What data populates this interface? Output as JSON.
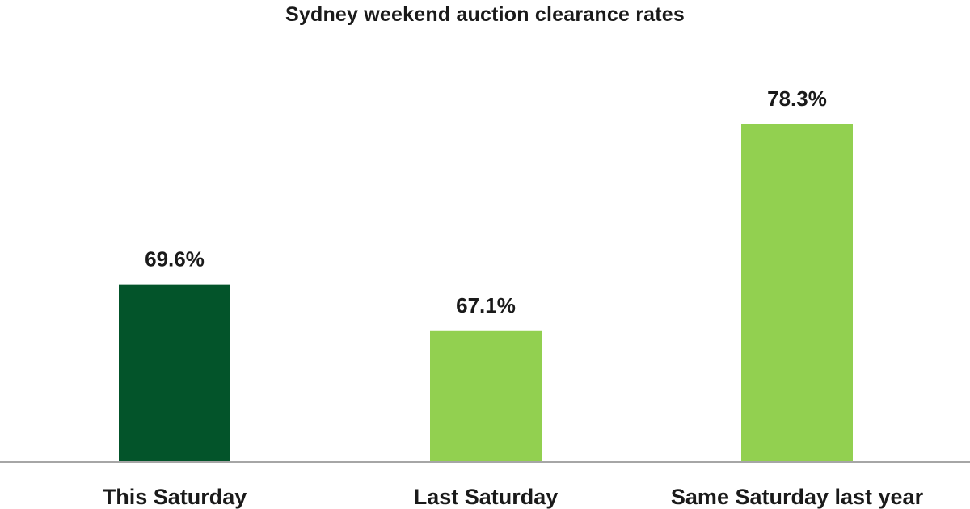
{
  "colors": {
    "accent_dark_green": "#03542a",
    "accent_light_green": "#92d050",
    "axis_line": "#a6a6a6"
  },
  "chart_data": {
    "type": "bar",
    "title": "Sydney weekend auction clearance rates",
    "xlabel": "",
    "ylabel": "",
    "categories": [
      "This Saturday",
      "Last Saturday",
      "Same Saturday last year"
    ],
    "values": [
      69.6,
      67.1,
      78.3
    ],
    "value_labels": [
      "69.6%",
      "67.1%",
      "78.3%"
    ],
    "unit": "%",
    "ylim": [
      60,
      80
    ],
    "bar_colors": [
      "#03542a",
      "#92d050",
      "#92d050"
    ],
    "grid": false,
    "legend": "none"
  }
}
